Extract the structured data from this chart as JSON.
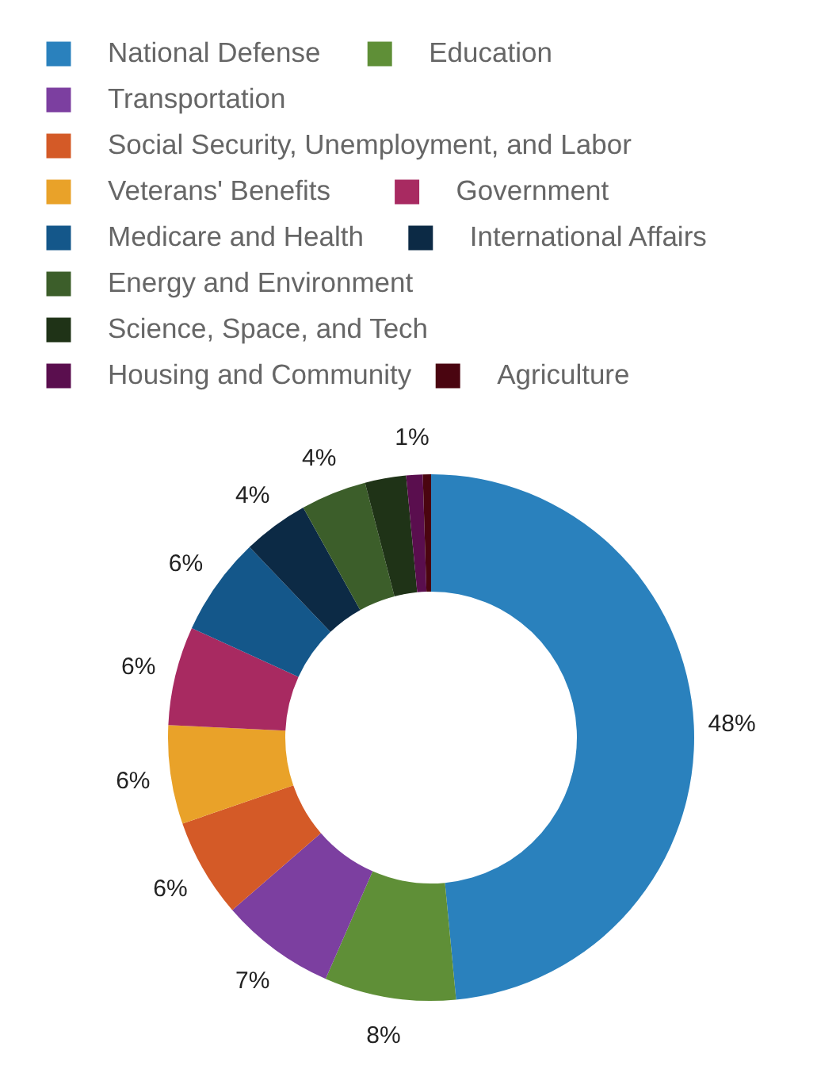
{
  "chart_data": {
    "type": "donut",
    "categories": [
      "National Defense",
      "Education",
      "Transportation",
      "Social Security, Unemployment, and Labor",
      "Veterans' Benefits",
      "Government",
      "Medicare and Health",
      "International Affairs",
      "Energy and Environment",
      "Science, Space, and Tech",
      "Housing and Community",
      "Agriculture"
    ],
    "values": [
      48,
      8,
      7,
      6,
      6,
      6,
      6,
      4,
      4,
      2.5,
      1,
      0.5
    ],
    "colors": [
      "#2a81bd",
      "#5f8f37",
      "#7c3fa0",
      "#d45a27",
      "#e9a229",
      "#a82a61",
      "#14578a",
      "#0c2a45",
      "#3c5e2a",
      "#1f3317",
      "#5a0e4e",
      "#4a0510"
    ],
    "value_labels": [
      "48%",
      "8%",
      "7%",
      "6%",
      "6%",
      "6%",
      "6%",
      "4%",
      "4%",
      null,
      "1%",
      null
    ],
    "legend": "top"
  }
}
